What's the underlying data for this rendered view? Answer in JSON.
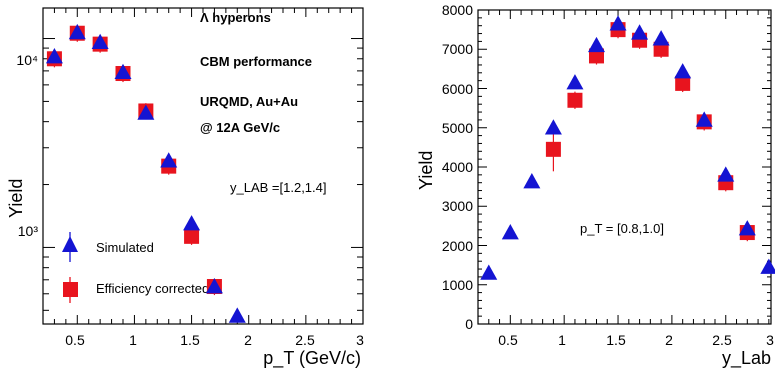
{
  "colors": {
    "simulated": "#1414d2",
    "corrected": "#e8141e",
    "axis": "#000000"
  },
  "chart_data": [
    {
      "type": "scatter",
      "title": "",
      "xlabel": "p_T (GeV/c)",
      "ylabel": "Yield",
      "y_scale": "log",
      "xlim": [
        0.2,
        3.0
      ],
      "ylim": [
        430,
        14000
      ],
      "x_ticks": [
        "0.5",
        "1",
        "1.5",
        "2",
        "2.5",
        "3"
      ],
      "y_ticks": [
        "10³",
        "10⁴"
      ],
      "annotations": [
        "Λ hyperons",
        "CBM performance",
        "URQMD, Au+Au",
        "@ 12A GeV/c",
        "y_LAB =[1.2,1.4]"
      ],
      "legend": {
        "placement": "bottom-left",
        "entries": [
          "Simulated",
          "Efficiency corrected"
        ]
      },
      "series": [
        {
          "name": "Simulated",
          "marker": "triangle",
          "x": [
            0.3,
            0.5,
            0.7,
            0.9,
            1.1,
            1.3,
            1.5,
            1.7,
            1.9
          ],
          "y": [
            8200,
            10700,
            9600,
            6900,
            4400,
            2600,
            1300,
            650,
            470
          ]
        },
        {
          "name": "Efficiency corrected",
          "marker": "square",
          "x": [
            0.3,
            0.5,
            0.7,
            0.9,
            1.1,
            1.3,
            1.5,
            1.7
          ],
          "y": [
            8000,
            10600,
            9400,
            6800,
            4500,
            2450,
            1130,
            650
          ]
        }
      ]
    },
    {
      "type": "scatter",
      "title": "",
      "xlabel": "y_Lab",
      "ylabel": "Yield",
      "xlim": [
        0.2,
        2.92
      ],
      "ylim": [
        0,
        8000
      ],
      "x_ticks": [
        "0.5",
        "1",
        "1.5",
        "2",
        "2.5",
        "3"
      ],
      "y_ticks": [
        "0",
        "1000",
        "2000",
        "3000",
        "4000",
        "5000",
        "6000",
        "7000",
        "8000"
      ],
      "annotations": [
        "p_T = [0.8,1.0]"
      ],
      "series": [
        {
          "name": "Simulated",
          "marker": "triangle",
          "x": [
            0.3,
            0.5,
            0.7,
            0.9,
            1.1,
            1.3,
            1.5,
            1.7,
            1.9,
            2.1,
            2.3,
            2.5,
            2.7,
            2.9
          ],
          "y": [
            1300,
            2330,
            3630,
            5000,
            6150,
            7100,
            7650,
            7420,
            7270,
            6430,
            5200,
            3800,
            2430,
            1450
          ]
        },
        {
          "name": "Efficiency corrected",
          "marker": "square",
          "x": [
            0.9,
            1.1,
            1.3,
            1.5,
            1.7,
            1.9,
            2.1,
            2.3,
            2.5,
            2.7
          ],
          "y": [
            4450,
            5700,
            6830,
            7500,
            7230,
            7000,
            6130,
            5150,
            3600,
            2330
          ]
        }
      ]
    }
  ]
}
